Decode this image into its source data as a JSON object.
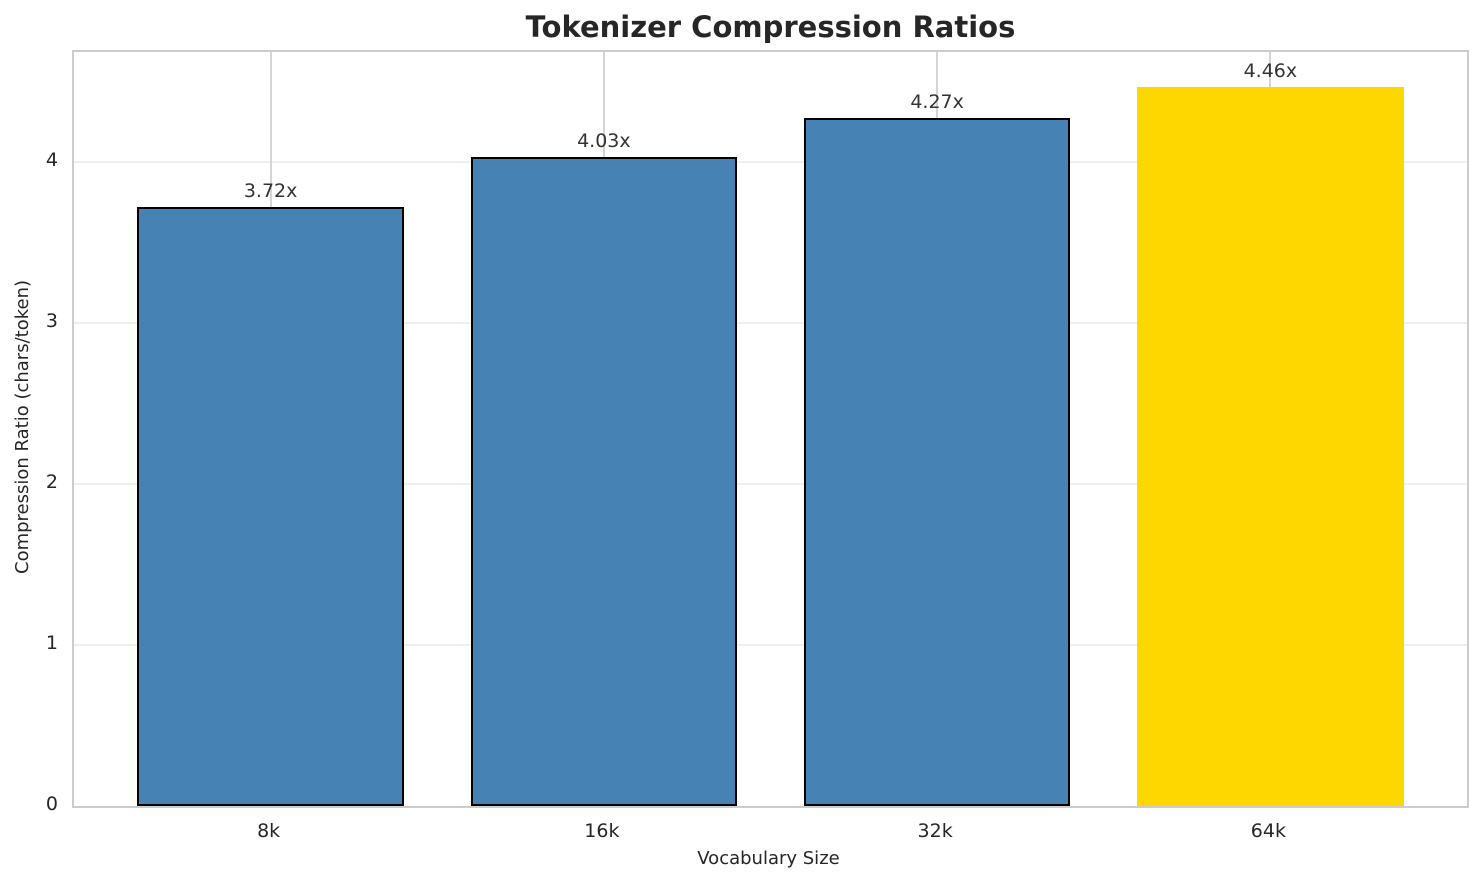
{
  "chart_data": {
    "type": "bar",
    "title": "Tokenizer Compression Ratios",
    "xlabel": "Vocabulary Size",
    "ylabel": "Compression Ratio (chars/token)",
    "categories": [
      "8k",
      "16k",
      "32k",
      "64k"
    ],
    "values": [
      3.72,
      4.03,
      4.27,
      4.46
    ],
    "bar_labels": [
      "3.72x",
      "4.03x",
      "4.27x",
      "4.46x"
    ],
    "bar_colors": [
      "#4682B4",
      "#4682B4",
      "#4682B4",
      "#FFD700"
    ],
    "bar_edge_colors": [
      "#000000",
      "#000000",
      "#000000",
      "none"
    ],
    "yticks": [
      0,
      1,
      2,
      3,
      4
    ],
    "ylim": [
      0,
      4.68
    ],
    "grid": true,
    "legend_position": "none",
    "style": {
      "accent_color": "#4682B4",
      "highlight_color": "#FFD700",
      "bar_edge_color": "#000000",
      "spine_color": "#cccccc",
      "hgrid_color": "#efefef",
      "vgrid_color": "#d5d5d5",
      "text_color": "#262626"
    }
  }
}
